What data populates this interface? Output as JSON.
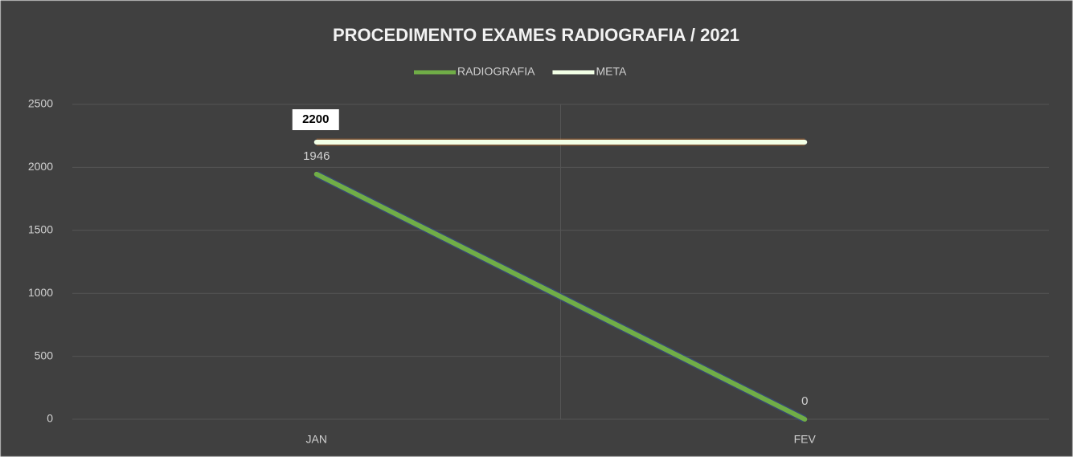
{
  "chart_data": {
    "type": "line",
    "title": "PROCEDIMENTO EXAMES RADIOGRAFIA / 2021",
    "categories": [
      "JAN",
      "FEV"
    ],
    "series": [
      {
        "name": "RADIOGRAFIA",
        "color": "#70ad47",
        "values": [
          1946,
          0
        ]
      },
      {
        "name": "META",
        "color": "#f2ffe6",
        "values": [
          2200,
          2200
        ],
        "value_labels": [
          "2200",
          null
        ]
      }
    ],
    "ylim": [
      0,
      2500
    ],
    "yticks": [
      0,
      500,
      1000,
      1500,
      2000,
      2500
    ],
    "grid": true,
    "legend": "top"
  }
}
